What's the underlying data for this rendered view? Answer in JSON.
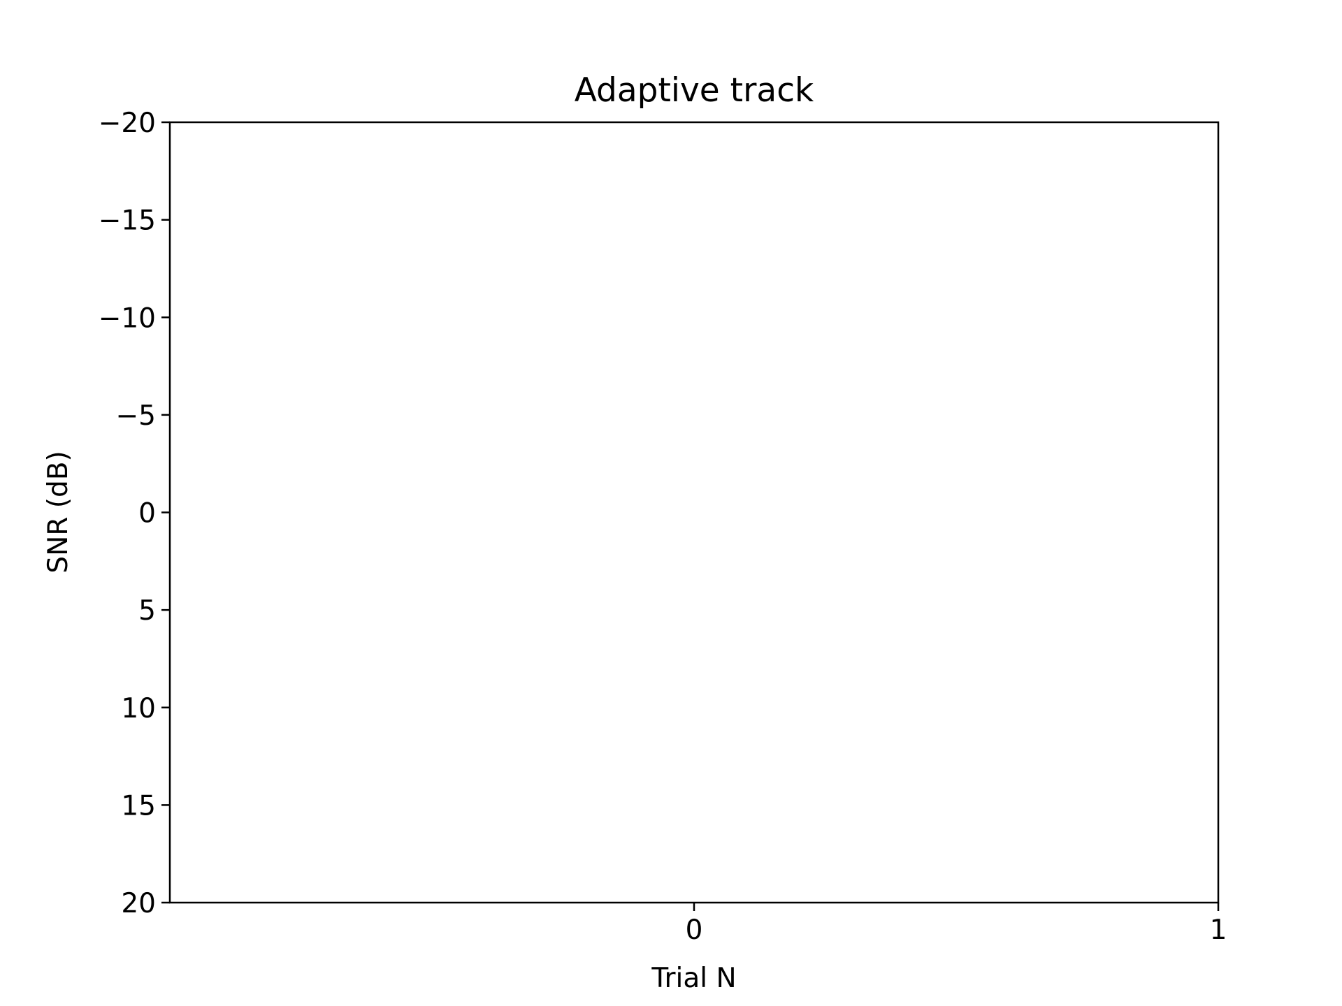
{
  "chart_data": {
    "type": "line",
    "title": "Adaptive track",
    "xlabel": "Trial N",
    "ylabel": "SNR (dB)",
    "xlim": [
      -1,
      1
    ],
    "ylim": [
      20,
      -20
    ],
    "y_inverted": true,
    "xticks": [
      0,
      1
    ],
    "xtick_labels": [
      "0",
      "1"
    ],
    "yticks": [
      -20,
      -15,
      -10,
      -5,
      0,
      5,
      10,
      15,
      20
    ],
    "ytick_labels": [
      "−20",
      "−15",
      "−10",
      "−5",
      "0",
      "5",
      "10",
      "15",
      "20"
    ],
    "series": [],
    "grid": false,
    "legend": "none"
  }
}
